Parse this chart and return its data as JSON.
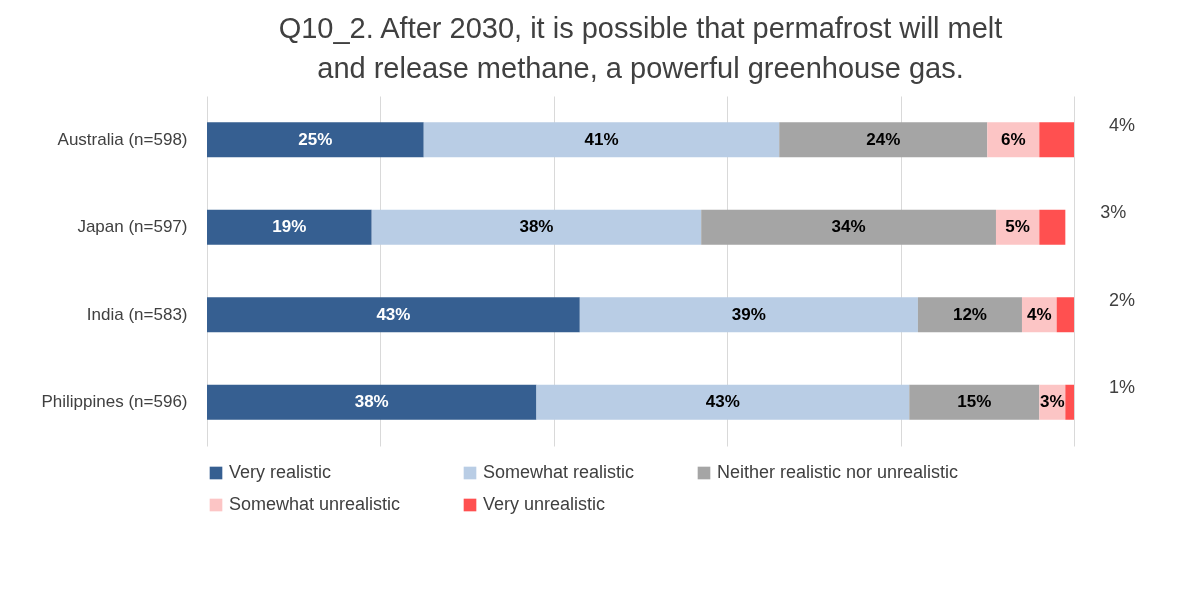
{
  "chart_data": {
    "type": "bar",
    "orientation": "horizontal",
    "stacked": true,
    "title": "Q10_2. After 2030, it is possible that permafrost will melt and release methane, a powerful greenhouse gas.",
    "categories": [
      "Australia (n=598)",
      "Japan (n=597)",
      "India (n=583)",
      "Philippines (n=596)"
    ],
    "series": [
      {
        "name": "Very realistic",
        "color": "#365f91",
        "values": [
          25,
          19,
          43,
          38
        ],
        "value_labels": [
          "25%",
          "19%",
          "43%",
          "38%"
        ]
      },
      {
        "name": "Somewhat realistic",
        "color": "#b9cde5",
        "values": [
          41,
          38,
          39,
          43
        ],
        "value_labels": [
          "41%",
          "38%",
          "39%",
          "43%"
        ]
      },
      {
        "name": "Neither realistic nor unrealistic",
        "color": "#a5a5a5",
        "values": [
          24,
          34,
          12,
          15
        ],
        "value_labels": [
          "24%",
          "34%",
          "12%",
          "15%"
        ]
      },
      {
        "name": "Somewhat unrealistic",
        "color": "#fcc5c5",
        "values": [
          6,
          5,
          4,
          3
        ],
        "value_labels": [
          "6%",
          "5%",
          "4%",
          "3%"
        ]
      },
      {
        "name": "Very unrealistic",
        "color": "#ff5050",
        "values": [
          4,
          3,
          2,
          1
        ],
        "value_labels": [
          "4%",
          "3%",
          "2%",
          "1%"
        ]
      }
    ],
    "tick_labels": "y",
    "grid": "x",
    "legend": "bottom"
  }
}
